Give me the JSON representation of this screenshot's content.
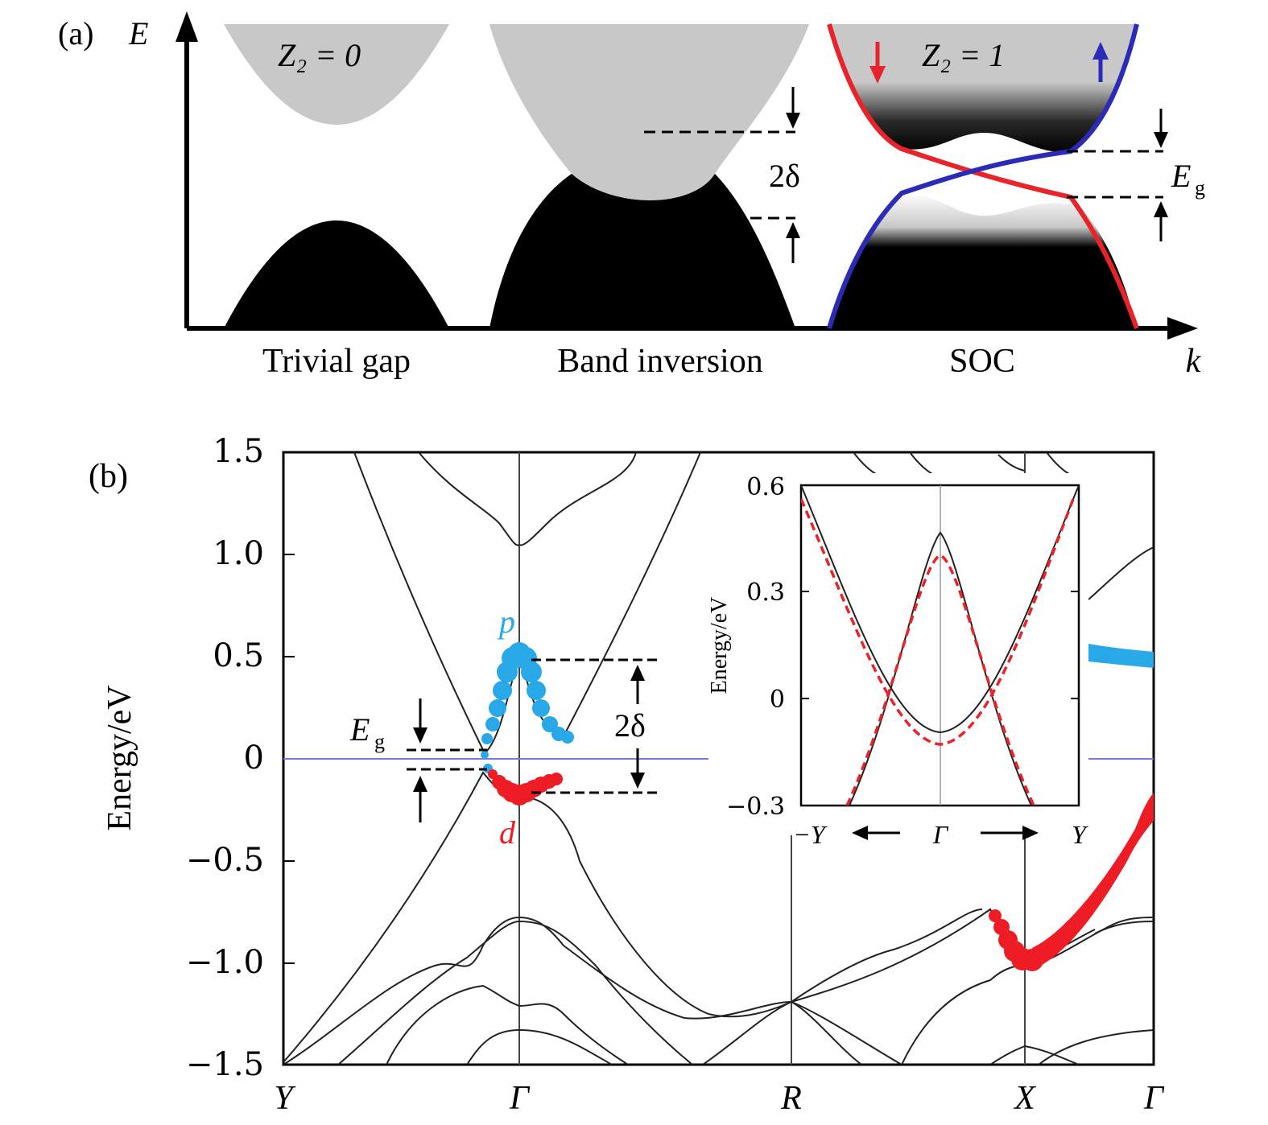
{
  "panel_a": {
    "panel_label": "(a)",
    "y_axis_label": "E",
    "x_axis_label": "k",
    "sections": [
      "Trivial gap",
      "Band inversion",
      "SOC"
    ],
    "z2_labels": [
      "Z₂ = 0",
      "Z₂ = 1"
    ],
    "delta_label": "2δ",
    "gap_label": "E",
    "gap_subscript": "g",
    "colors": {
      "fill_grey": "#c8c8c8",
      "fill_black": "#000000",
      "spin_down": "#e8232a",
      "spin_up": "#2b2bb8"
    }
  },
  "panel_b": {
    "panel_label": "(b)",
    "ylabel": "Energy/eV",
    "yticks": [
      "1.5",
      "1.0",
      "0.5",
      "0",
      "−0.5",
      "−1.0",
      "−1.5"
    ],
    "kpoints": [
      "Y",
      "Γ",
      "R",
      "X",
      "Γ"
    ],
    "orbital_p": "p",
    "orbital_d": "d",
    "gap_label": "E",
    "gap_subscript": "g",
    "delta_label": "2δ",
    "colors": {
      "p_orbital": "#29a8e8",
      "d_orbital": "#ee1c24",
      "fermi": "#7b7bd6"
    },
    "inset": {
      "ylabel": "Energy/eV",
      "yticks": [
        "0.6",
        "0.3",
        "0",
        "−0.3"
      ],
      "xticks": [
        "−Y",
        "Γ",
        "Y"
      ]
    }
  },
  "chart_data": {
    "type": "line",
    "title": "",
    "ylabel": "Energy/eV",
    "ylim": [
      -1.5,
      1.5
    ],
    "x": [
      "Y",
      "Γ",
      "R",
      "X",
      "Γ"
    ],
    "series": [
      {
        "name": "p",
        "values": [
          null,
          0.52,
          null,
          null,
          0.5
        ]
      },
      {
        "name": "d",
        "values": [
          null,
          -0.19,
          null,
          -0.98,
          -0.2
        ]
      }
    ],
    "annotations": [
      "Eg",
      "2δ"
    ],
    "inset": {
      "ylim": [
        -0.3,
        0.6
      ],
      "x": [
        "−Y",
        "Γ",
        "Y"
      ]
    }
  }
}
